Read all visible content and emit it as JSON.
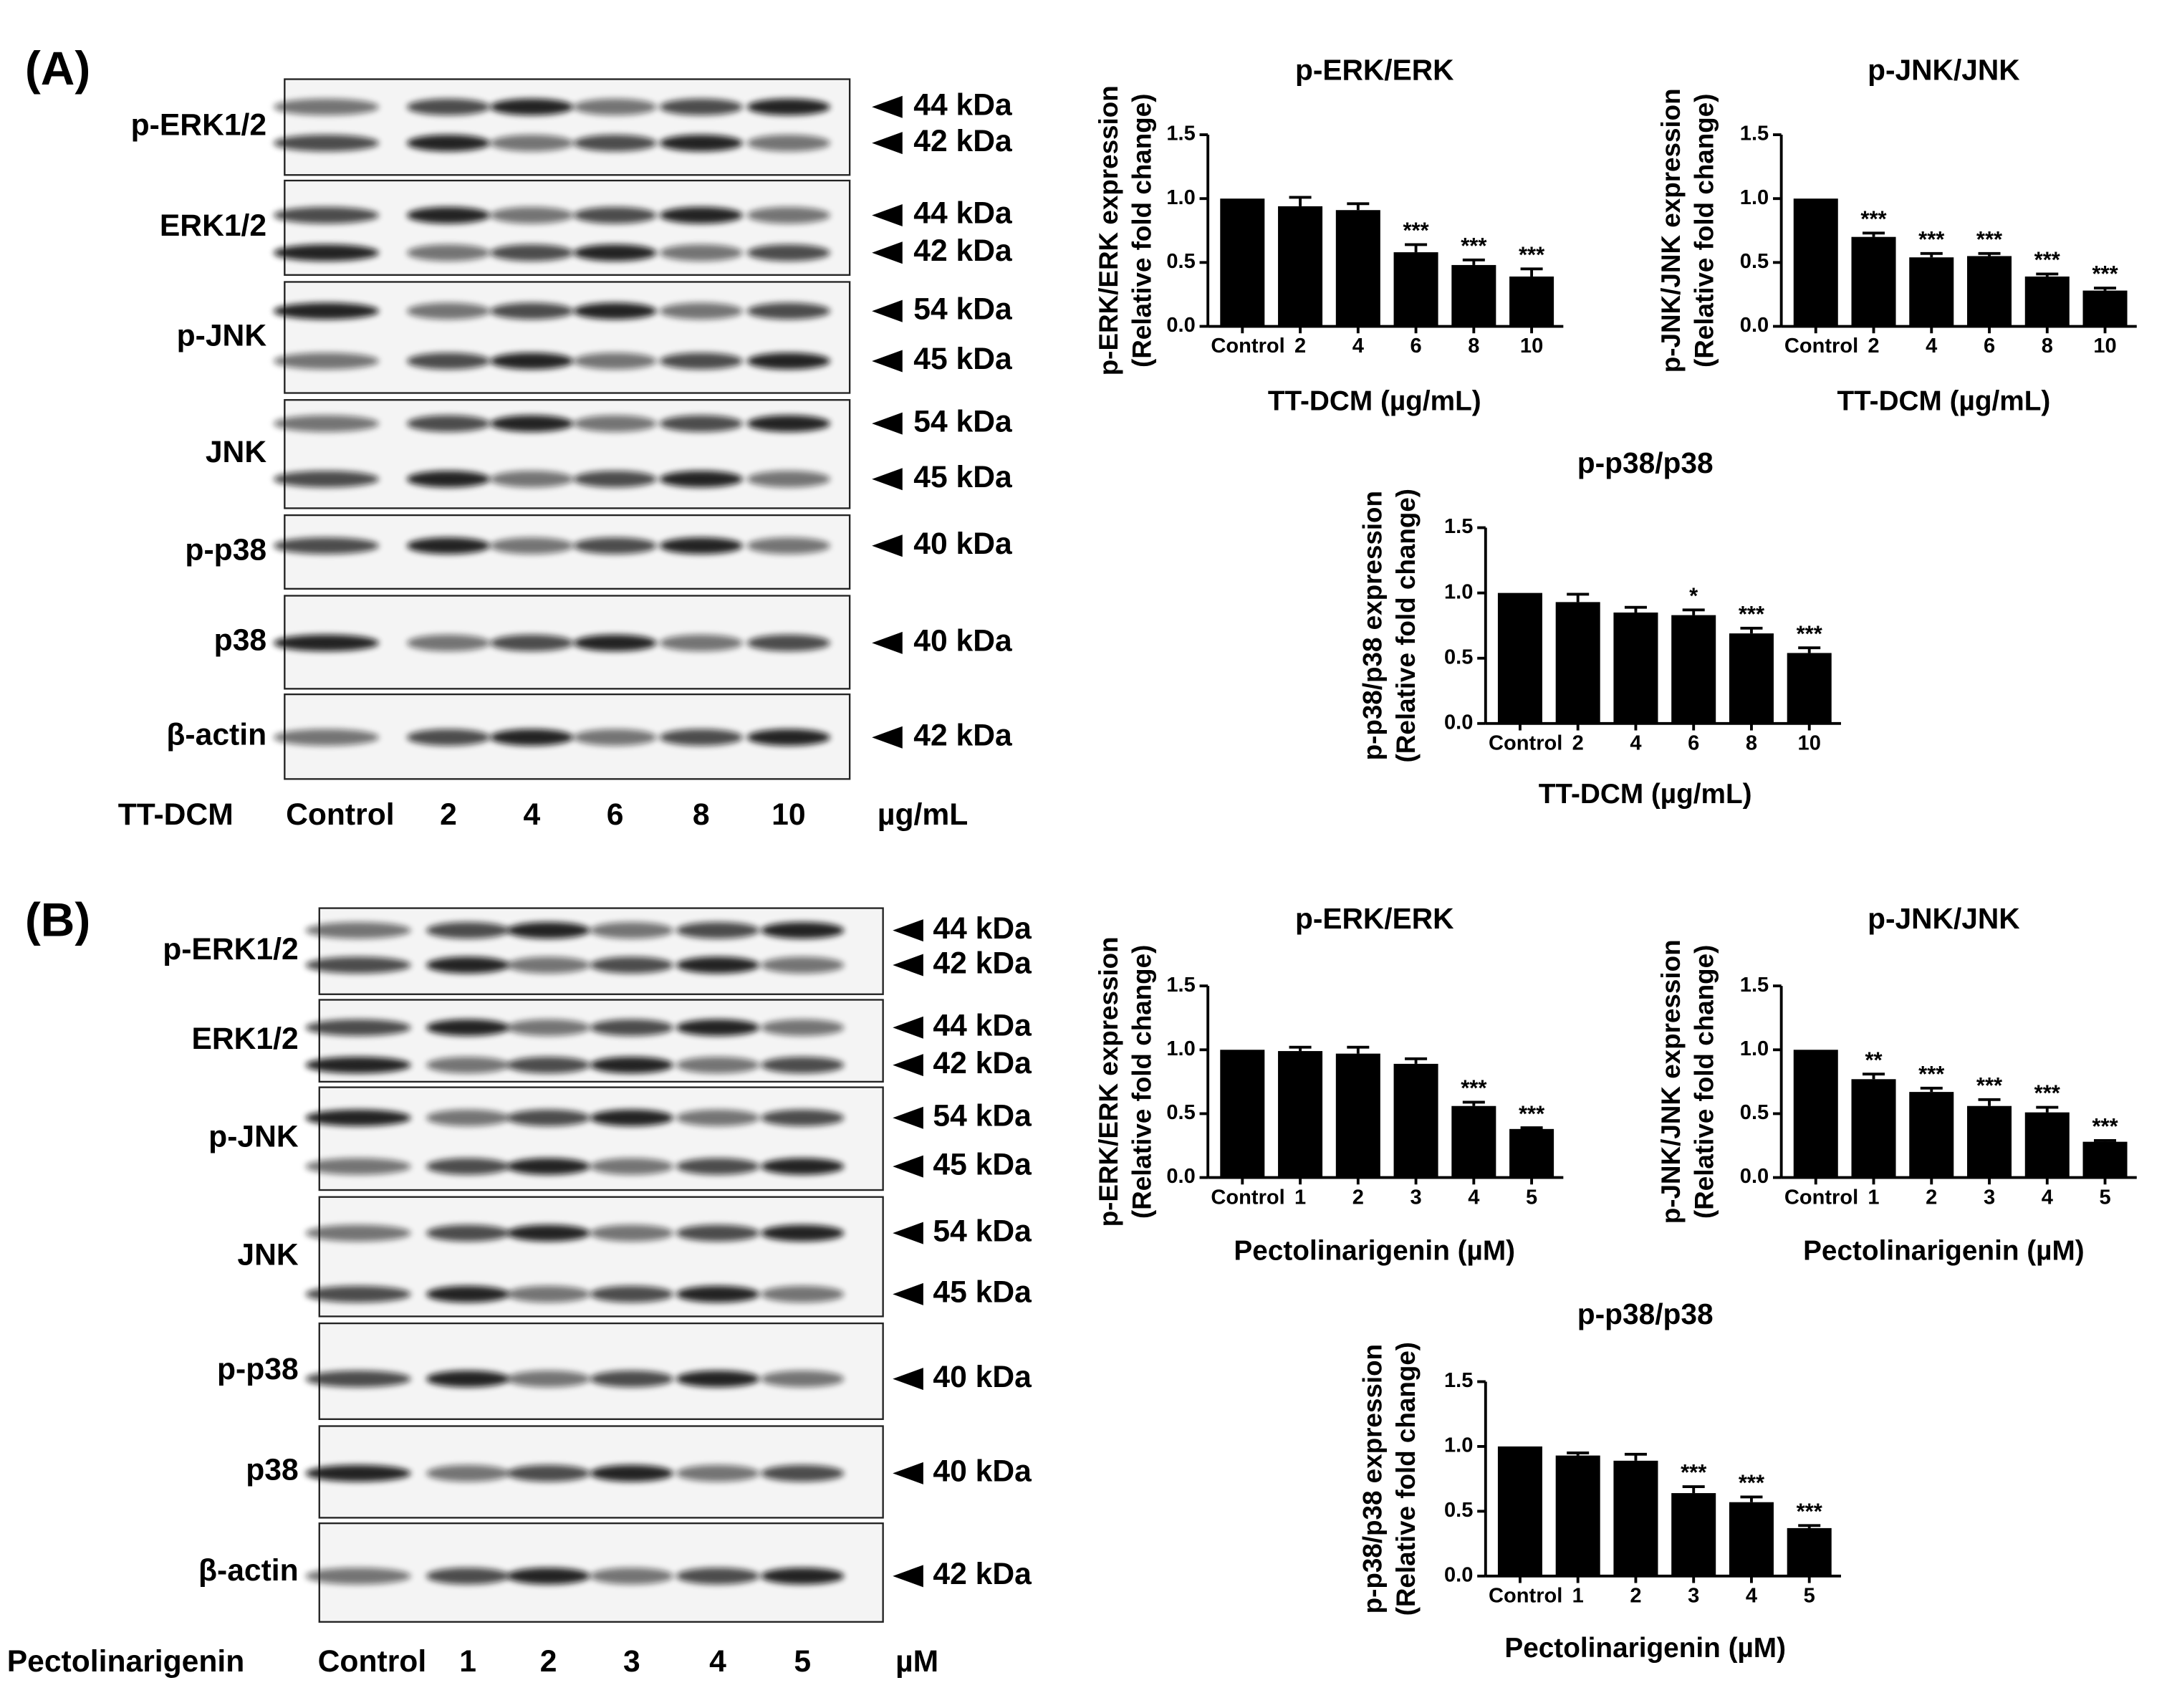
{
  "panels": [
    {
      "label": "(A)",
      "treatment": "TT-DCM",
      "lanes": [
        "Control",
        "2",
        "4",
        "6",
        "8",
        "10"
      ],
      "unit": "µg/mL",
      "rows": [
        {
          "name": "p-ERK1/2",
          "markers": [
            "44 kDa",
            "42 kDa"
          ]
        },
        {
          "name": "ERK1/2",
          "markers": [
            "44 kDa",
            "42 kDa"
          ]
        },
        {
          "name": "p-JNK",
          "markers": [
            "54 kDa",
            "45 kDa"
          ]
        },
        {
          "name": "JNK",
          "markers": [
            "54 kDa",
            "45 kDa"
          ]
        },
        {
          "name": "p-p38",
          "markers": [
            "40 kDa"
          ]
        },
        {
          "name": "p38",
          "markers": [
            "40 kDa"
          ]
        },
        {
          "name": "β-actin",
          "markers": [
            "42 kDa"
          ]
        }
      ]
    },
    {
      "label": "(B)",
      "treatment": "Pectolinarigenin",
      "lanes": [
        "Control",
        "1",
        "2",
        "3",
        "4",
        "5"
      ],
      "unit": "µM",
      "rows": [
        {
          "name": "p-ERK1/2",
          "markers": [
            "44 kDa",
            "42 kDa"
          ]
        },
        {
          "name": "ERK1/2",
          "markers": [
            "44 kDa",
            "42 kDa"
          ]
        },
        {
          "name": "p-JNK",
          "markers": [
            "54 kDa",
            "45 kDa"
          ]
        },
        {
          "name": "JNK",
          "markers": [
            "54 kDa",
            "45 kDa"
          ]
        },
        {
          "name": "p-p38",
          "markers": [
            "40 kDa"
          ]
        },
        {
          "name": "p38",
          "markers": [
            "40 kDa"
          ]
        },
        {
          "name": "β-actin",
          "markers": [
            "42 kDa"
          ]
        }
      ]
    }
  ],
  "chart_data": [
    {
      "type": "bar",
      "title": "p-ERK/ERK",
      "y_label": [
        "p-ERK/ERK expression",
        "(Relative fold change)"
      ],
      "x_label": "TT-DCM (µg/mL)",
      "categories": [
        "Control",
        "2",
        "4",
        "6",
        "8",
        "10"
      ],
      "values": [
        1.0,
        0.94,
        0.91,
        0.58,
        0.48,
        0.39
      ],
      "errors": [
        0,
        0.07,
        0.05,
        0.06,
        0.04,
        0.06
      ],
      "annotations": [
        null,
        null,
        null,
        "***",
        "***",
        "***"
      ],
      "color": "#000000",
      "ylim": [
        0,
        1.5
      ],
      "yticks": [
        {
          "value": 0,
          "label": "0.0"
        },
        {
          "value": 0.5,
          "label": "0.5"
        },
        {
          "value": 1,
          "label": "1.0"
        },
        {
          "value": 1.5,
          "label": "1.5"
        }
      ]
    },
    {
      "type": "bar",
      "title": "p-JNK/JNK",
      "y_label": [
        "p-JNK/JNK expression",
        "(Relative fold change)"
      ],
      "x_label": "TT-DCM (µg/mL)",
      "categories": [
        "Control",
        "2",
        "4",
        "6",
        "8",
        "10"
      ],
      "values": [
        1.0,
        0.7,
        0.54,
        0.55,
        0.39,
        0.28
      ],
      "errors": [
        0,
        0.03,
        0.03,
        0.02,
        0.02,
        0.02
      ],
      "annotations": [
        null,
        "***",
        "***",
        "***",
        "***",
        "***"
      ],
      "color": "#000000",
      "ylim": [
        0,
        1.5
      ],
      "yticks": [
        {
          "value": 0,
          "label": "0.0"
        },
        {
          "value": 0.5,
          "label": "0.5"
        },
        {
          "value": 1,
          "label": "1.0"
        },
        {
          "value": 1.5,
          "label": "1.5"
        }
      ]
    },
    {
      "type": "bar",
      "title": "p-p38/p38",
      "y_label": [
        "p-p38/p38 expression",
        "(Relative fold change)"
      ],
      "x_label": "TT-DCM (µg/mL)",
      "categories": [
        "Control",
        "2",
        "4",
        "6",
        "8",
        "10"
      ],
      "values": [
        1.0,
        0.93,
        0.85,
        0.83,
        0.69,
        0.54
      ],
      "errors": [
        0,
        0.06,
        0.04,
        0.04,
        0.04,
        0.04
      ],
      "annotations": [
        null,
        null,
        null,
        "*",
        "***",
        "***"
      ],
      "color": "#000000",
      "ylim": [
        0,
        1.5
      ],
      "yticks": [
        {
          "value": 0,
          "label": "0.0"
        },
        {
          "value": 0.5,
          "label": "0.5"
        },
        {
          "value": 1,
          "label": "1.0"
        },
        {
          "value": 1.5,
          "label": "1.5"
        }
      ]
    },
    {
      "type": "bar",
      "title": "p-ERK/ERK",
      "y_label": [
        "p-ERK/ERK expression",
        "(Relative fold change)"
      ],
      "x_label": "Pectolinarigenin (µM)",
      "categories": [
        "Control",
        "1",
        "2",
        "3",
        "4",
        "5"
      ],
      "values": [
        1.0,
        0.99,
        0.97,
        0.89,
        0.56,
        0.38
      ],
      "errors": [
        0,
        0.03,
        0.05,
        0.04,
        0.03,
        0.01
      ],
      "annotations": [
        null,
        null,
        null,
        null,
        "***",
        "***"
      ],
      "color": "#000000",
      "ylim": [
        0,
        1.5
      ],
      "yticks": [
        {
          "value": 0,
          "label": "0.0"
        },
        {
          "value": 0.5,
          "label": "0.5"
        },
        {
          "value": 1,
          "label": "1.0"
        },
        {
          "value": 1.5,
          "label": "1.5"
        }
      ]
    },
    {
      "type": "bar",
      "title": "p-JNK/JNK",
      "y_label": [
        "p-JNK/JNK expression",
        "(Relative fold change)"
      ],
      "x_label": "Pectolinarigenin (µM)",
      "categories": [
        "Control",
        "1",
        "2",
        "3",
        "4",
        "5"
      ],
      "values": [
        1.0,
        0.77,
        0.67,
        0.56,
        0.51,
        0.28
      ],
      "errors": [
        0,
        0.04,
        0.03,
        0.05,
        0.04,
        0.01
      ],
      "annotations": [
        null,
        "**",
        "***",
        "***",
        "***",
        "***"
      ],
      "color": "#000000",
      "ylim": [
        0,
        1.5
      ],
      "yticks": [
        {
          "value": 0,
          "label": "0.0"
        },
        {
          "value": 0.5,
          "label": "0.5"
        },
        {
          "value": 1,
          "label": "1.0"
        },
        {
          "value": 1.5,
          "label": "1.5"
        }
      ]
    },
    {
      "type": "bar",
      "title": "p-p38/p38",
      "y_label": [
        "p-p38/p38 expression",
        "(Relative fold change)"
      ],
      "x_label": "Pectolinarigenin (µM)",
      "categories": [
        "Control",
        "1",
        "2",
        "3",
        "4",
        "5"
      ],
      "values": [
        1.0,
        0.93,
        0.89,
        0.64,
        0.57,
        0.37
      ],
      "errors": [
        0,
        0.02,
        0.05,
        0.05,
        0.04,
        0.02
      ],
      "annotations": [
        null,
        null,
        null,
        "***",
        "***",
        "***"
      ],
      "color": "#000000",
      "ylim": [
        0,
        1.5
      ],
      "yticks": [
        {
          "value": 0,
          "label": "0.0"
        },
        {
          "value": 0.5,
          "label": "0.5"
        },
        {
          "value": 1,
          "label": "1.0"
        },
        {
          "value": 1.5,
          "label": "1.5"
        }
      ]
    }
  ]
}
